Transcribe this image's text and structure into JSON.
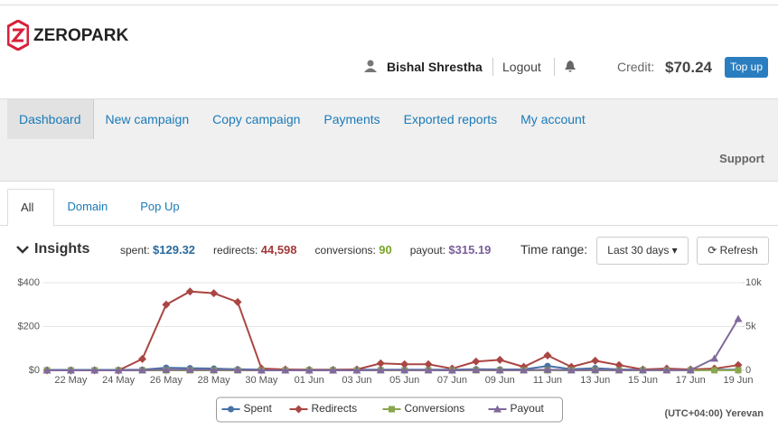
{
  "header": {
    "logo": "ZEROPARK",
    "user": "Bishal Shrestha",
    "logout": "Logout",
    "credit_label": "Credit:",
    "credit": "$70.24",
    "top_up": "Top up"
  },
  "nav": [
    "Dashboard",
    "New campaign",
    "Copy campaign",
    "Payments",
    "Exported reports",
    "My account"
  ],
  "support": "Support",
  "tabs": [
    "All",
    "Domain",
    "Pop Up"
  ],
  "insights": {
    "title": "Insights",
    "stats": [
      {
        "label": "spent:",
        "value": "$129.32",
        "color": "#2a6a9e"
      },
      {
        "label": "redirects:",
        "value": "44,598",
        "color": "#a33a3a"
      },
      {
        "label": "conversions:",
        "value": "90",
        "color": "#7aa52a"
      },
      {
        "label": "payout:",
        "value": "$315.19",
        "color": "#7a5f9a"
      }
    ],
    "time_range_label": "Time range:",
    "time_range": "Last 30 days",
    "refresh": "Refresh"
  },
  "chart_data": {
    "type": "line",
    "categories": [
      null,
      "22 May",
      null,
      "24 May",
      null,
      "26 May",
      null,
      "28 May",
      null,
      "30 May",
      null,
      "01 Jun",
      null,
      "03 Jun",
      null,
      "05 Jun",
      null,
      "07 Jun",
      null,
      "09 Jun",
      null,
      "11 Jun",
      null,
      "13 Jun",
      null,
      "15 Jun",
      null,
      "17 Jun",
      null,
      "19 Jun"
    ],
    "ylim": [
      0,
      400
    ],
    "yticks": [
      {
        "value": 0,
        "label": "$0"
      },
      {
        "value": 200,
        "label": "$200"
      },
      {
        "value": 400,
        "label": "$400"
      }
    ],
    "y2lim": [
      0,
      10000
    ],
    "y2ticks": [
      0,
      {
        "value": 5000,
        "label": "5k"
      },
      {
        "value": 10000,
        "label": "10k"
      }
    ],
    "grid": true,
    "series": [
      {
        "name": "Spent",
        "color": "#4572a7",
        "marker": "circle",
        "values": [
          2,
          2,
          2,
          2,
          3,
          12,
          10,
          8,
          5,
          3,
          3,
          3,
          3,
          3,
          3,
          3,
          3,
          3,
          5,
          4,
          4,
          20,
          5,
          10,
          4,
          3,
          3,
          3,
          3,
          3
        ]
      },
      {
        "name": "Redirects",
        "color": "#aa4643",
        "marker": "diamond",
        "axis": "y2",
        "values": [
          0,
          0,
          0,
          0,
          1300,
          7500,
          9000,
          8800,
          7800,
          200,
          100,
          50,
          50,
          100,
          800,
          700,
          700,
          200,
          1000,
          1200,
          400,
          1700,
          400,
          1100,
          600,
          100,
          200,
          100,
          200,
          600
        ]
      },
      {
        "name": "Conversions",
        "color": "#89a54e",
        "marker": "square",
        "axis": "y2",
        "values": [
          0,
          0,
          0,
          0,
          0,
          2,
          3,
          3,
          2,
          0,
          0,
          0,
          0,
          1,
          3,
          3,
          3,
          1,
          5,
          4,
          2,
          8,
          3,
          6,
          4,
          3,
          4,
          4,
          10,
          16
        ]
      },
      {
        "name": "Payout",
        "color": "#80699b",
        "marker": "triangle",
        "values": [
          0,
          0,
          0,
          0,
          1,
          3,
          3,
          2,
          2,
          0,
          0,
          0,
          0,
          0,
          1,
          1,
          1,
          0,
          2,
          1,
          1,
          3,
          1,
          2,
          1,
          1,
          1,
          1,
          54,
          235
        ]
      }
    ]
  },
  "timezone": "(UTC+04:00) Yerevan"
}
